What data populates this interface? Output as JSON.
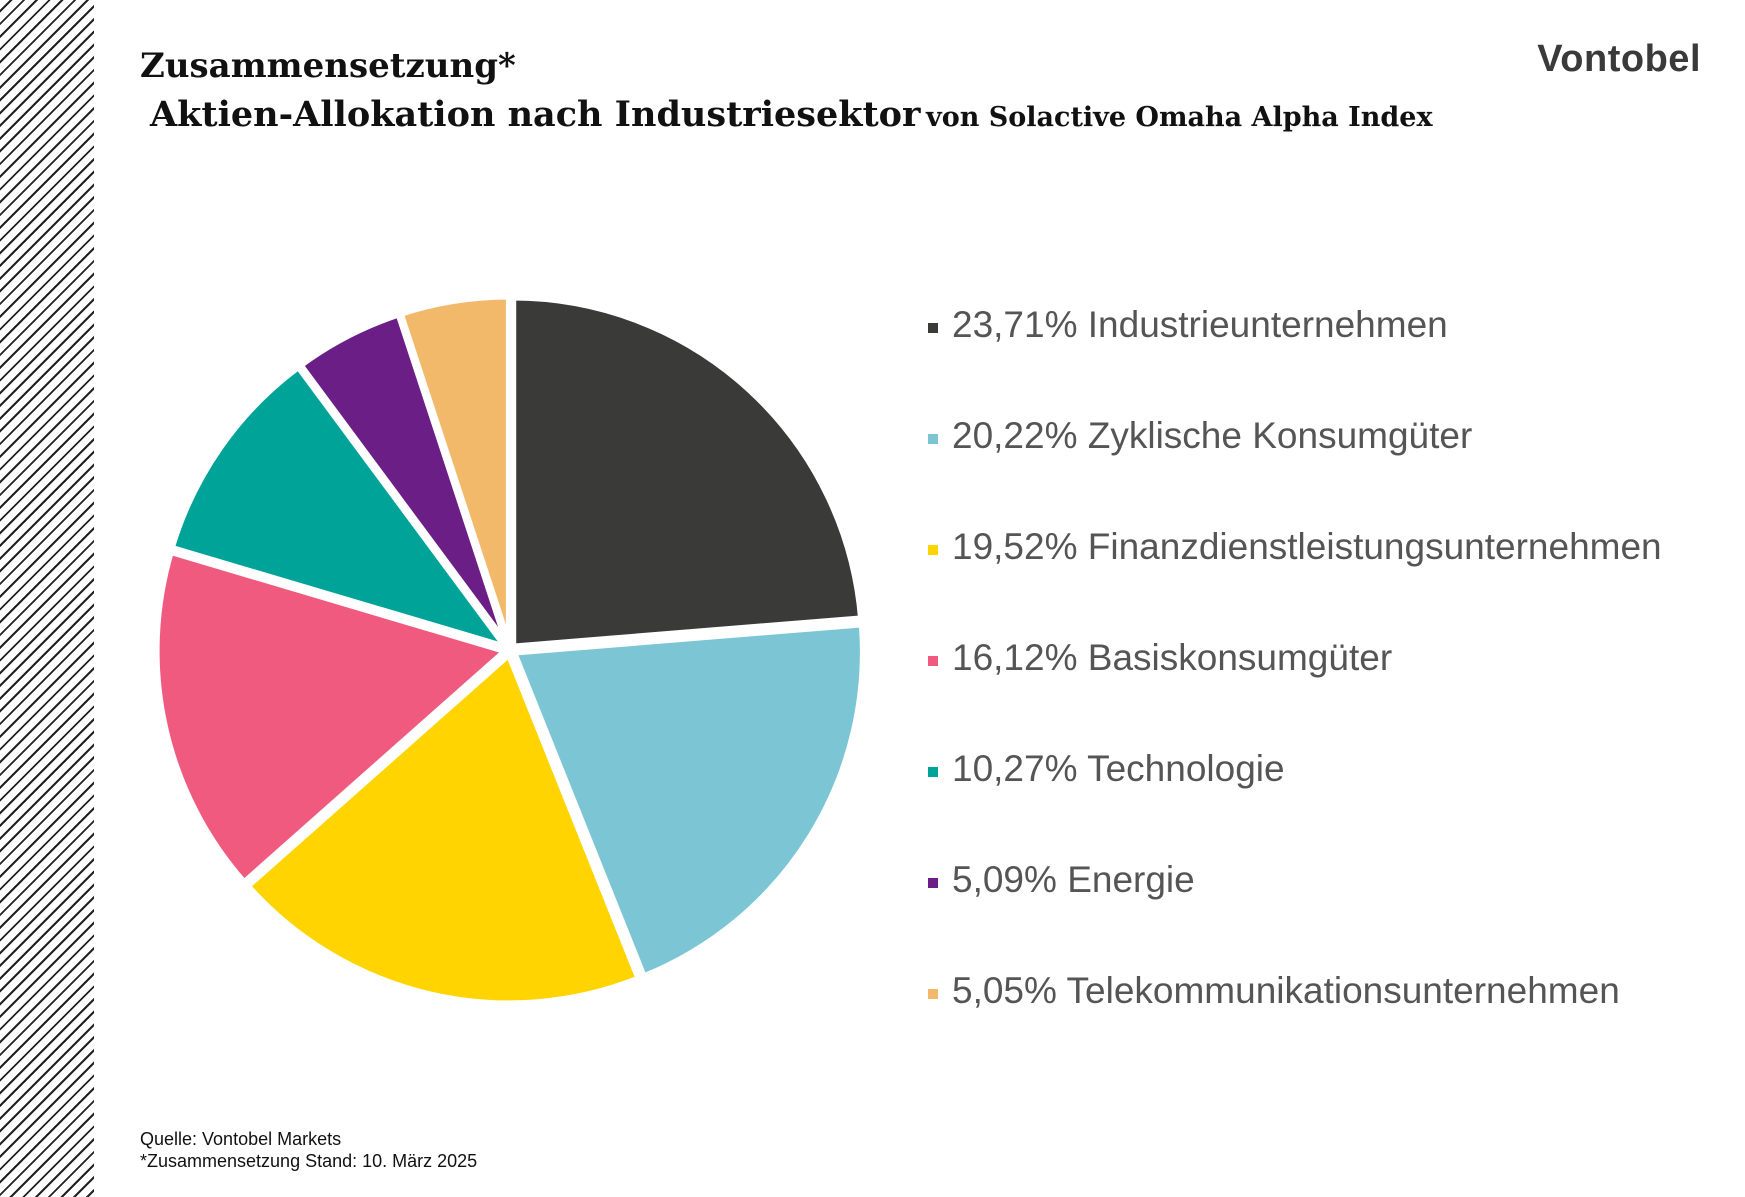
{
  "header": {
    "title": "Zusammensetzung*",
    "subtitle_main": "Aktien-Allokation nach Industriesektor",
    "subtitle_rest": "von Solactive Omaha Alpha Index",
    "brand": "Vontobel"
  },
  "chart_data": {
    "type": "pie",
    "title": "Zusammensetzung*",
    "subtitle": "Aktien-Allokation nach Industriesektor von Solactive Omaha Alpha Index",
    "legend_position": "right",
    "slices": [
      {
        "label": "Industrieunternehmen",
        "value": 23.71,
        "display": "23,71% Industrieunternehmen",
        "color": "#3a3a38"
      },
      {
        "label": "Zyklische Konsumgüter",
        "value": 20.22,
        "display": "20,22% Zyklische Konsumgüter",
        "color": "#7cc5d5"
      },
      {
        "label": "Finanzdienstleistungsunternehmen",
        "value": 19.52,
        "display": "19,52% Finanzdienstleistungsunternehmen",
        "color": "#ffd400"
      },
      {
        "label": "Basiskonsumgüter",
        "value": 16.12,
        "display": "16,12% Basiskonsumgüter",
        "color": "#f05a7e"
      },
      {
        "label": "Technologie",
        "value": 10.27,
        "display": "10,27% Technologie",
        "color": "#00a398"
      },
      {
        "label": "Energie",
        "value": 5.09,
        "display": "5,09% Energie",
        "color": "#6b1f86"
      },
      {
        "label": "Telekommunikationsunternehmen",
        "value": 5.05,
        "display": "5,05% Telekommunikationsunternehmen",
        "color": "#f3b96a"
      }
    ]
  },
  "footer": {
    "source": "Quelle: Vontobel Markets",
    "note": "*Zusammensetzung Stand: 10. März 2025"
  }
}
